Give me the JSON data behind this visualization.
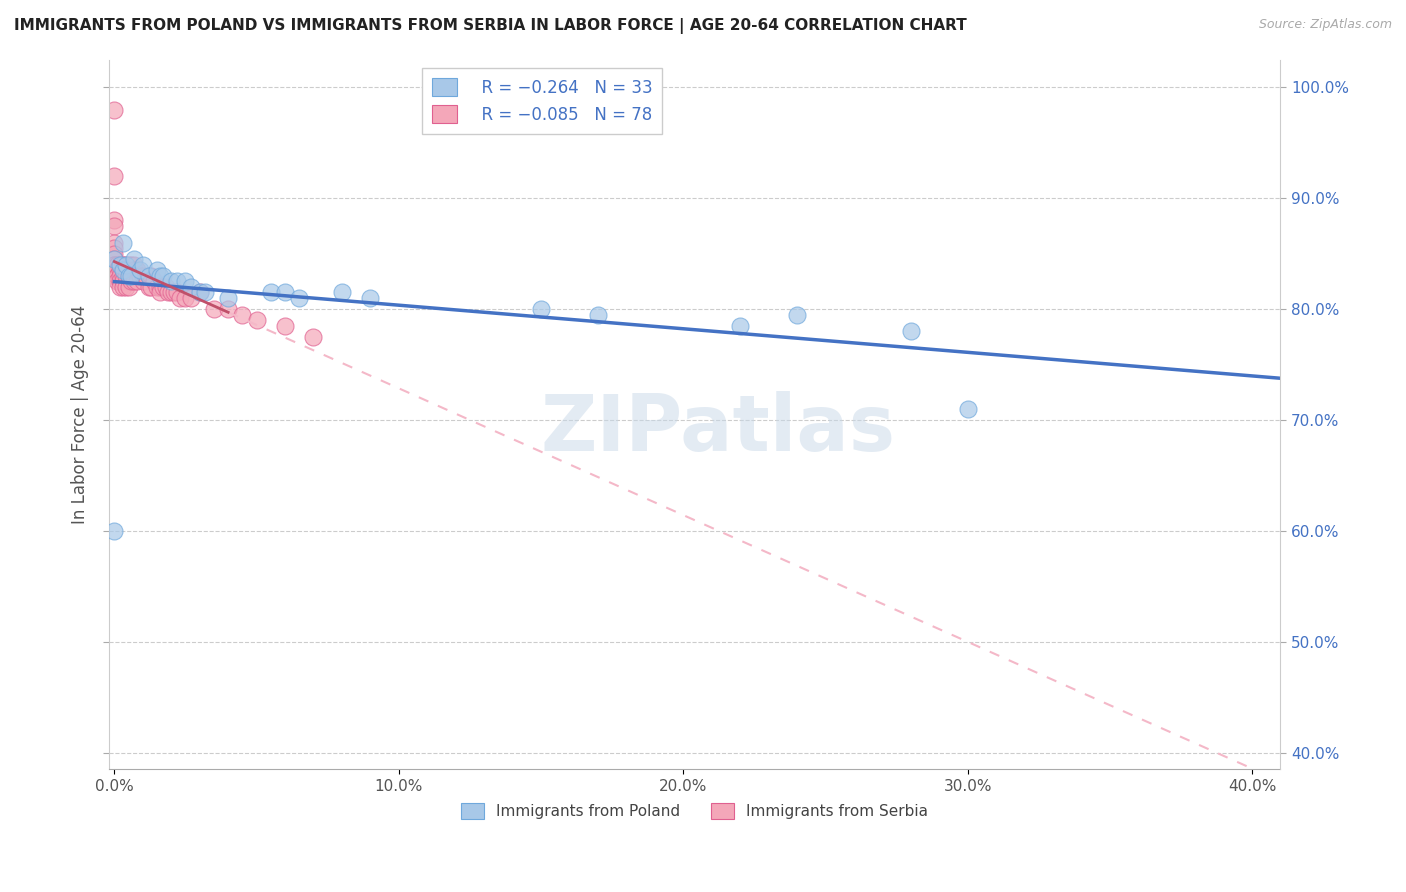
{
  "title": "IMMIGRANTS FROM POLAND VS IMMIGRANTS FROM SERBIA IN LABOR FORCE | AGE 20-64 CORRELATION CHART",
  "source": "Source: ZipAtlas.com",
  "ylabel": "In Labor Force | Age 20-64",
  "xlim": [
    -0.002,
    0.41
  ],
  "ylim": [
    0.385,
    1.025
  ],
  "x_ticks": [
    0.0,
    0.1,
    0.2,
    0.3,
    0.4
  ],
  "x_tick_labels": [
    "0.0%",
    "10.0%",
    "20.0%",
    "30.0%",
    "40.0%"
  ],
  "y_ticks": [
    0.4,
    0.5,
    0.6,
    0.7,
    0.8,
    0.9,
    1.0
  ],
  "y_tick_labels": [
    "40.0%",
    "50.0%",
    "60.0%",
    "70.0%",
    "80.0%",
    "90.0%",
    "100.0%"
  ],
  "poland_color": "#a8c8e8",
  "serbia_color": "#f4a7b9",
  "poland_edge_color": "#6fa8dc",
  "serbia_edge_color": "#e06090",
  "poland_line_color": "#4472c4",
  "serbia_solid_line_color": "#c0506a",
  "serbia_dash_line_color": "#f4b8c8",
  "legend_r_poland": "R = −0.264",
  "legend_n_poland": "N = 33",
  "legend_r_serbia": "R = −0.085",
  "legend_n_serbia": "N = 78",
  "legend_label_poland": "Immigrants from Poland",
  "legend_label_serbia": "Immigrants from Serbia",
  "watermark": "ZIPatlas",
  "poland_x": [
    0.0,
    0.0,
    0.002,
    0.003,
    0.003,
    0.004,
    0.005,
    0.006,
    0.007,
    0.009,
    0.01,
    0.012,
    0.015,
    0.016,
    0.017,
    0.02,
    0.022,
    0.025,
    0.027,
    0.03,
    0.032,
    0.04,
    0.055,
    0.06,
    0.065,
    0.08,
    0.09,
    0.15,
    0.17,
    0.22,
    0.24,
    0.28,
    0.3
  ],
  "poland_y": [
    0.6,
    0.845,
    0.84,
    0.86,
    0.835,
    0.84,
    0.83,
    0.83,
    0.845,
    0.835,
    0.84,
    0.83,
    0.835,
    0.83,
    0.83,
    0.825,
    0.825,
    0.825,
    0.82,
    0.815,
    0.815,
    0.81,
    0.815,
    0.815,
    0.81,
    0.815,
    0.81,
    0.8,
    0.795,
    0.785,
    0.795,
    0.78,
    0.71
  ],
  "serbia_x": [
    0.0,
    0.0,
    0.0,
    0.0,
    0.0,
    0.0,
    0.0,
    0.0,
    0.0,
    0.0,
    0.0,
    0.0,
    0.0,
    0.001,
    0.001,
    0.001,
    0.001,
    0.001,
    0.001,
    0.001,
    0.001,
    0.001,
    0.002,
    0.002,
    0.002,
    0.002,
    0.002,
    0.002,
    0.003,
    0.003,
    0.003,
    0.003,
    0.003,
    0.003,
    0.004,
    0.004,
    0.004,
    0.004,
    0.005,
    0.005,
    0.005,
    0.005,
    0.006,
    0.006,
    0.006,
    0.007,
    0.007,
    0.007,
    0.008,
    0.008,
    0.009,
    0.01,
    0.01,
    0.011,
    0.012,
    0.012,
    0.013,
    0.013,
    0.014,
    0.015,
    0.016,
    0.016,
    0.017,
    0.018,
    0.019,
    0.02,
    0.021,
    0.022,
    0.023,
    0.025,
    0.027,
    0.03,
    0.035,
    0.04,
    0.045,
    0.05,
    0.06,
    0.07
  ],
  "serbia_y": [
    0.98,
    0.92,
    0.88,
    0.875,
    0.86,
    0.855,
    0.85,
    0.845,
    0.84,
    0.84,
    0.835,
    0.835,
    0.83,
    0.84,
    0.84,
    0.835,
    0.835,
    0.835,
    0.835,
    0.83,
    0.83,
    0.825,
    0.84,
    0.84,
    0.835,
    0.83,
    0.825,
    0.82,
    0.84,
    0.84,
    0.835,
    0.83,
    0.825,
    0.82,
    0.84,
    0.835,
    0.83,
    0.82,
    0.84,
    0.835,
    0.83,
    0.82,
    0.84,
    0.835,
    0.825,
    0.84,
    0.835,
    0.825,
    0.835,
    0.825,
    0.83,
    0.83,
    0.825,
    0.83,
    0.83,
    0.82,
    0.83,
    0.82,
    0.825,
    0.82,
    0.82,
    0.815,
    0.82,
    0.82,
    0.815,
    0.815,
    0.815,
    0.815,
    0.81,
    0.81,
    0.81,
    0.815,
    0.8,
    0.8,
    0.795,
    0.79,
    0.785,
    0.775
  ]
}
